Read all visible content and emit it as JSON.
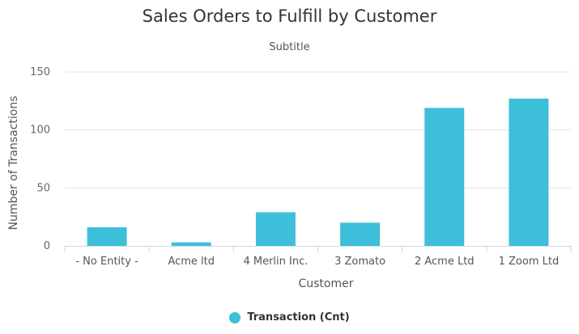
{
  "chart_data": {
    "type": "bar",
    "title": "Sales Orders to Fulfill by Customer",
    "subtitle": "Subtitle",
    "xlabel": "Customer",
    "ylabel": "Number of Transactions",
    "categories": [
      "- No Entity -",
      "Acme ltd",
      "4 Merlin Inc.",
      "3 Zomato",
      "2 Acme Ltd",
      "1 Zoom Ltd"
    ],
    "series": [
      {
        "name": "Transaction (Cnt)",
        "values": [
          16,
          3,
          29,
          20,
          119,
          127
        ],
        "color": "#3dbfd9"
      }
    ],
    "ylim": [
      0,
      150
    ],
    "yticks": [
      0,
      50,
      100,
      150
    ],
    "grid": true,
    "legend_position": "bottom-center"
  }
}
